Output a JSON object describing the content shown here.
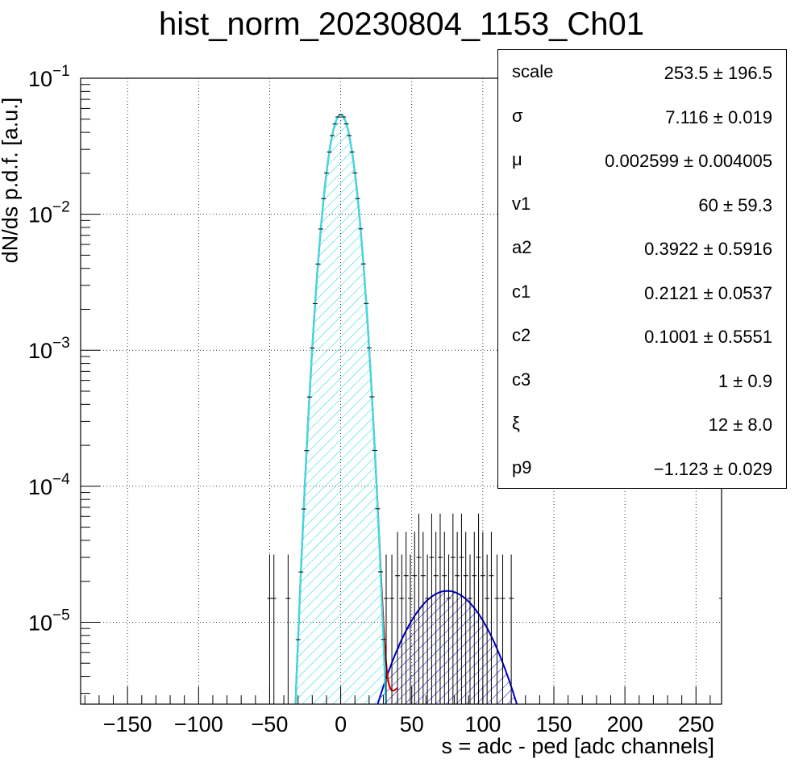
{
  "chart_data": {
    "type": "histogram",
    "title": "hist_norm_20230804_1153_Ch01",
    "xlabel": "s = adc - ped [adc channels]",
    "ylabel": "dN/ds p.d.f. [a.u.]",
    "xlim": [
      -183,
      268
    ],
    "ylim": [
      2.5e-06,
      0.1
    ],
    "log_y": true,
    "grid": true,
    "x_ticks": [
      "−150",
      "−100",
      "−50",
      "0",
      "50",
      "100",
      "150",
      "200",
      "250"
    ],
    "x_tick_values": [
      -150,
      -100,
      -50,
      0,
      50,
      100,
      150,
      200,
      250
    ],
    "y_ticks": [
      {
        "base": "10",
        "exp": "−5",
        "value": 1e-05
      },
      {
        "base": "10",
        "exp": "−4",
        "value": 0.0001
      },
      {
        "base": "10",
        "exp": "−3",
        "value": 0.001
      },
      {
        "base": "10",
        "exp": "−2",
        "value": 0.01
      },
      {
        "base": "10",
        "exp": "−1",
        "value": 0.1
      }
    ],
    "pedestal_peak": {
      "mu": 0.002599,
      "sigma": 7.116,
      "peak": 0.054
    },
    "signal_peak": {
      "mode": 75,
      "peak": 1.7e-05,
      "range": [
        30,
        125
      ]
    },
    "fit_colors": {
      "pedestal_fill": "#33dfea",
      "total_fit": "#e00000",
      "signal_fit": "#0000cc",
      "data": "#000000"
    },
    "data_points": [
      {
        "x": -50,
        "y": 1.5e-05
      },
      {
        "x": -47,
        "y": 1.5e-05
      },
      {
        "x": -37,
        "y": 1.5e-05
      },
      {
        "x": 32,
        "y": 1.5e-05
      },
      {
        "x": 36,
        "y": 1.5e-05
      },
      {
        "x": 40,
        "y": 2.2e-05
      },
      {
        "x": 43,
        "y": 1.5e-05
      },
      {
        "x": 46,
        "y": 2.2e-05
      },
      {
        "x": 49,
        "y": 1.5e-05
      },
      {
        "x": 52,
        "y": 2.2e-05
      },
      {
        "x": 55,
        "y": 3e-05
      },
      {
        "x": 58,
        "y": 2.2e-05
      },
      {
        "x": 61,
        "y": 1.5e-05
      },
      {
        "x": 64,
        "y": 3e-05
      },
      {
        "x": 67,
        "y": 2.2e-05
      },
      {
        "x": 70,
        "y": 3e-05
      },
      {
        "x": 73,
        "y": 2.2e-05
      },
      {
        "x": 76,
        "y": 1.5e-05
      },
      {
        "x": 79,
        "y": 3e-05
      },
      {
        "x": 82,
        "y": 2.2e-05
      },
      {
        "x": 85,
        "y": 3e-05
      },
      {
        "x": 88,
        "y": 2.2e-05
      },
      {
        "x": 91,
        "y": 1.5e-05
      },
      {
        "x": 94,
        "y": 2.2e-05
      },
      {
        "x": 97,
        "y": 3e-05
      },
      {
        "x": 100,
        "y": 2.2e-05
      },
      {
        "x": 103,
        "y": 1.5e-05
      },
      {
        "x": 106,
        "y": 2.2e-05
      },
      {
        "x": 110,
        "y": 1.5e-05
      },
      {
        "x": 114,
        "y": 1.5e-05
      },
      {
        "x": 120,
        "y": 1.5e-05
      },
      {
        "x": 268,
        "y": 1.5e-05
      }
    ]
  },
  "stats": [
    {
      "name": "scale",
      "value": "253.5 ± 196.5"
    },
    {
      "name": "σ",
      "value": "7.116 ± 0.019"
    },
    {
      "name": "μ",
      "value": "0.002599 ± 0.004005"
    },
    {
      "name": "v1",
      "value": "60 ± 59.3"
    },
    {
      "name": "a2",
      "value": "0.3922 ± 0.5916"
    },
    {
      "name": "c1",
      "value": "0.2121 ± 0.0537"
    },
    {
      "name": "c2",
      "value": "0.1001 ± 0.5551"
    },
    {
      "name": "c3",
      "value": "1 ± 0.9"
    },
    {
      "name": "ξ",
      "value": "12 ± 8.0"
    },
    {
      "name": "p9",
      "value": "−1.123 ± 0.029"
    }
  ]
}
